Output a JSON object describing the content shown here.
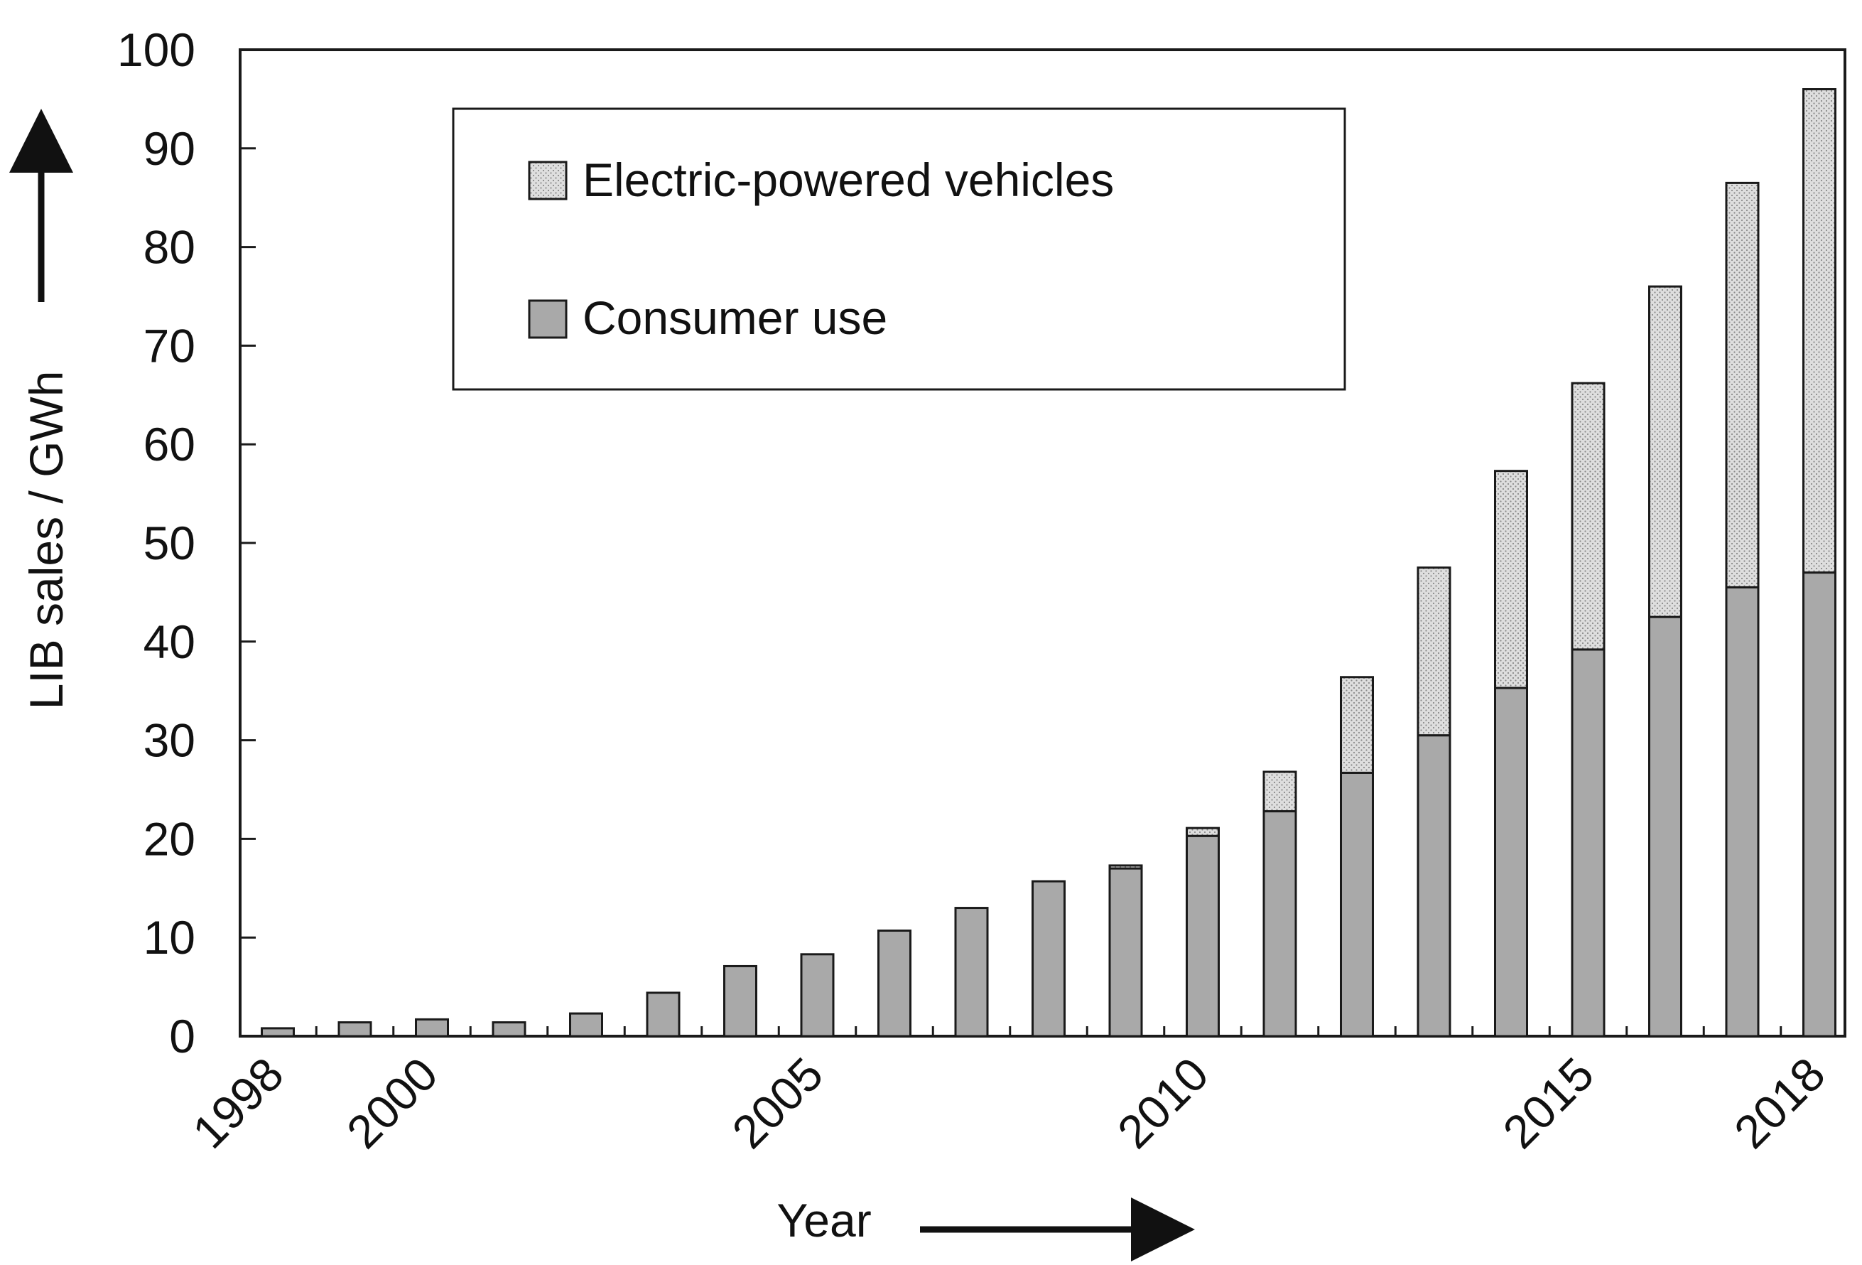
{
  "chart_data": {
    "type": "bar",
    "stacked": true,
    "title": "",
    "xlabel": "Year",
    "ylabel": "LIB sales / GWh",
    "ylim": [
      0,
      100
    ],
    "yticks": [
      0,
      10,
      20,
      30,
      40,
      50,
      60,
      70,
      80,
      90,
      100
    ],
    "x": [
      1998,
      1999,
      2000,
      2001,
      2002,
      2003,
      2004,
      2005,
      2006,
      2007,
      2008,
      2009,
      2010,
      2011,
      2012,
      2013,
      2014,
      2015,
      2016,
      2017,
      2018
    ],
    "xtick_labels": [
      {
        "year": 1998,
        "label": "1998"
      },
      {
        "year": 2000,
        "label": "2000"
      },
      {
        "year": 2005,
        "label": "2005"
      },
      {
        "year": 2010,
        "label": "2010"
      },
      {
        "year": 2015,
        "label": "2015"
      },
      {
        "year": 2018,
        "label": "2018"
      }
    ],
    "series": [
      {
        "name": "Consumer use",
        "values": [
          0.8,
          1.4,
          1.7,
          1.4,
          2.3,
          4.4,
          7.1,
          8.3,
          10.7,
          13.0,
          15.7,
          17.0,
          20.3,
          22.8,
          26.7,
          30.5,
          35.3,
          39.2,
          42.5,
          45.5,
          47.0
        ]
      },
      {
        "name": "Electric-powered vehicles",
        "values": [
          0,
          0,
          0,
          0,
          0,
          0,
          0,
          0,
          0,
          0,
          0,
          0.3,
          0.8,
          4.0,
          9.7,
          17.0,
          22.0,
          27.0,
          33.5,
          41.0,
          49.0
        ]
      }
    ],
    "legend": {
      "position": "top-left"
    },
    "colors": {
      "consumer": "#a9a9a9",
      "ev": "#dedede",
      "ev_dots": "#8a8a8a",
      "axis": "#1a1a1a"
    }
  }
}
